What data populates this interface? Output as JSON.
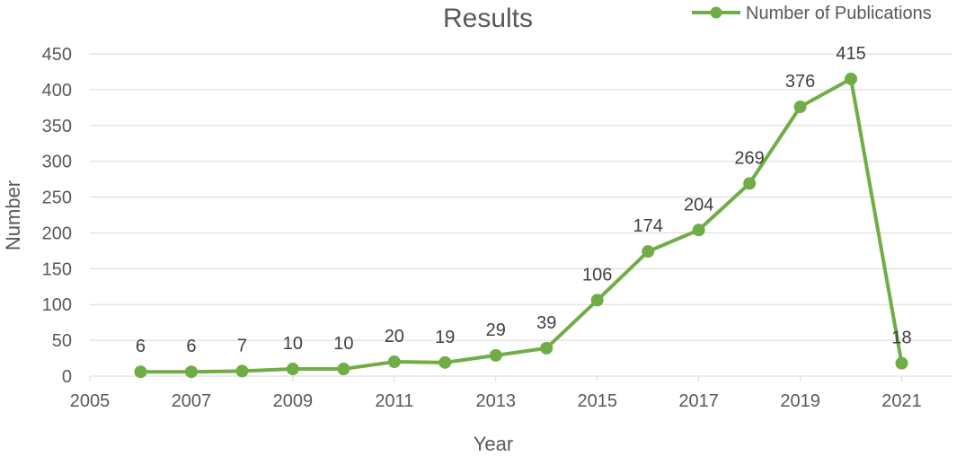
{
  "chart_data": {
    "type": "line",
    "title": "Results",
    "xlabel": "Year",
    "ylabel": "Number",
    "x": [
      2006,
      2007,
      2008,
      2009,
      2010,
      2011,
      2012,
      2013,
      2014,
      2015,
      2016,
      2017,
      2018,
      2019,
      2020,
      2021
    ],
    "series": [
      {
        "name": "Number of Publications",
        "values": [
          6,
          6,
          7,
          10,
          10,
          20,
          19,
          29,
          39,
          106,
          174,
          204,
          269,
          376,
          415,
          18
        ],
        "color": "#70ad47"
      }
    ],
    "data_labels": [
      "6",
      "6",
      "7",
      "10",
      "10",
      "20",
      "19",
      "29",
      "39",
      "106",
      "174",
      "204",
      "269",
      "376",
      "415",
      "18"
    ],
    "xlim": [
      2005,
      2022
    ],
    "ylim": [
      0,
      450
    ],
    "x_ticks": [
      "2005",
      "2007",
      "2009",
      "2011",
      "2013",
      "2015",
      "2017",
      "2019",
      "2021"
    ],
    "y_ticks": [
      "0",
      "50",
      "100",
      "150",
      "200",
      "250",
      "300",
      "350",
      "400",
      "450"
    ],
    "grid": true,
    "legend_position": "top-right",
    "colors": {
      "line": "#70ad47",
      "grid": "#d9d9d9",
      "text": "#595959"
    }
  }
}
